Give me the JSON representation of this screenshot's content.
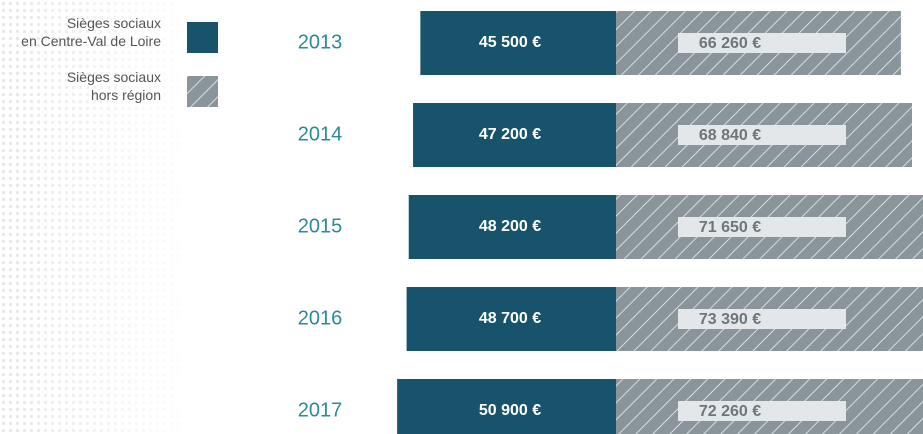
{
  "chart_data": {
    "type": "diverging-bar",
    "categories": [
      "2013",
      "2014",
      "2015",
      "2016",
      "2017"
    ],
    "series": [
      {
        "name": "Sièges sociaux\nen Centre-Val de Loire",
        "color": "#17546b",
        "values": [
          45500,
          47200,
          48200,
          48700,
          50900
        ],
        "value_labels": [
          "45 500 €",
          "47 200 €",
          "48 200 €",
          "48 700 €",
          "50 900 €"
        ]
      },
      {
        "name": "Sièges sociaux\nhors région",
        "color": "#8a949b",
        "pattern": "hatch",
        "values": [
          66260,
          68840,
          71650,
          73390,
          72260
        ],
        "value_labels": [
          "66 260 €",
          "68 840 €",
          "71 650 €",
          "73 390 €",
          "72 260 €"
        ]
      }
    ]
  }
}
